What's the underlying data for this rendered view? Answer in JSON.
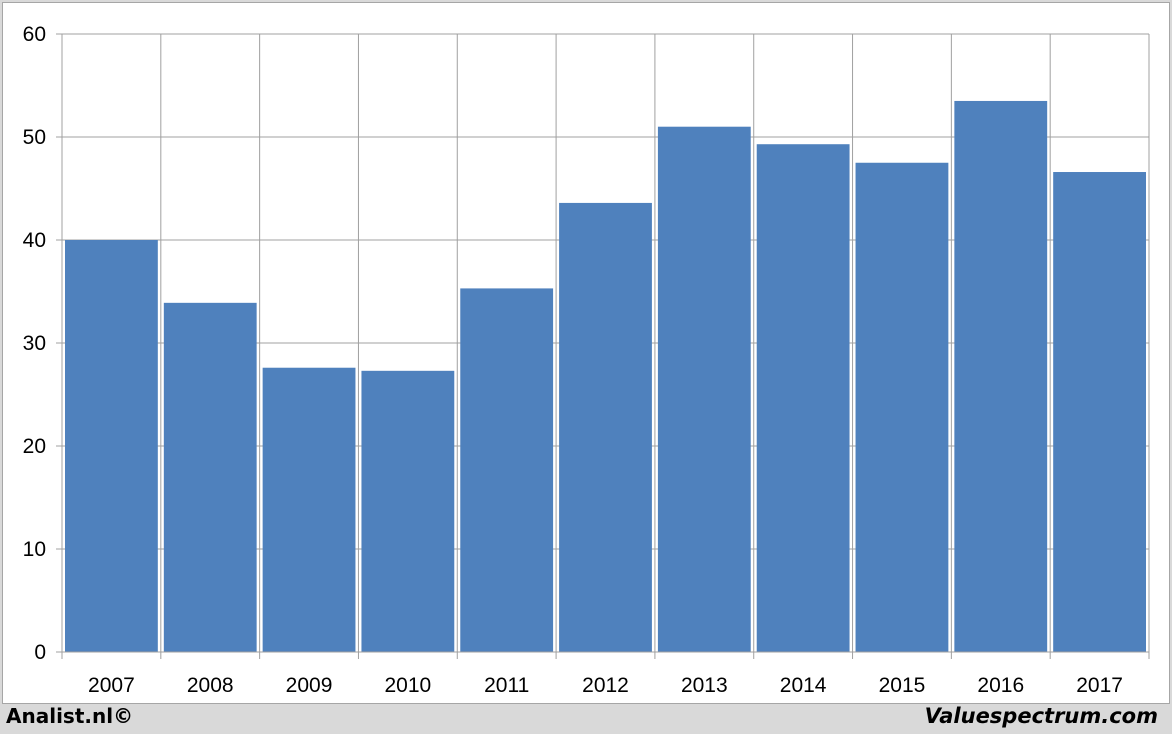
{
  "footer": {
    "left_text": "Analist.nl©",
    "right_text": "Valuespectrum.com"
  },
  "colors": {
    "bar": "#4f81bd",
    "grid": "#a0a0a0",
    "background": "#ffffff",
    "footer_background": "#d9d9d9"
  },
  "chart_data": {
    "type": "bar",
    "title": "",
    "xlabel": "",
    "ylabel": "",
    "categories": [
      "2007",
      "2008",
      "2009",
      "2010",
      "2011",
      "2012",
      "2013",
      "2014",
      "2015",
      "2016",
      "2017"
    ],
    "values": [
      40.0,
      33.9,
      27.6,
      27.3,
      35.3,
      43.6,
      51.0,
      49.3,
      47.5,
      53.5,
      46.6
    ],
    "ylim": [
      0,
      60
    ],
    "yticks": [
      "0",
      "10",
      "20",
      "30",
      "40",
      "50",
      "60"
    ],
    "grid": true,
    "legend": "none"
  }
}
